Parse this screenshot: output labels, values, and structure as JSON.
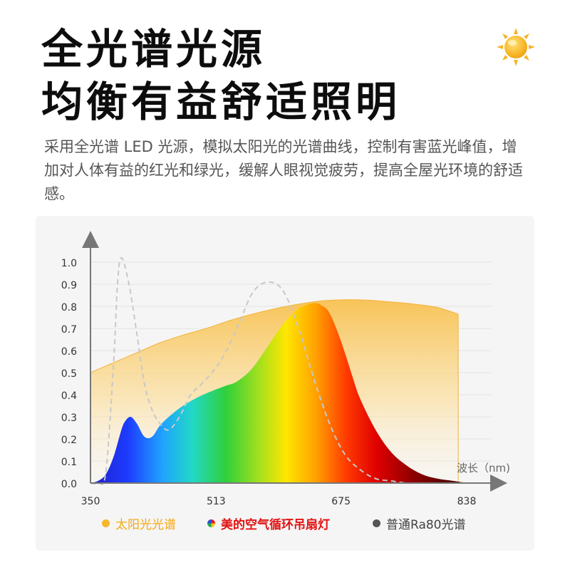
{
  "header": {
    "title_line1": "全光谱光源",
    "title_line2": "均衡有益舒适照明",
    "description": "采用全光谱 LED 光源，模拟太阳光的光谱曲线，控制有害蓝光峰值，增加对人体有益的红光和绿光，缓解人眼视觉疲劳，提高全屋光环境的舒适感。",
    "icon": "sun-icon"
  },
  "legend": {
    "sun": "太阳光光谱",
    "midea": "美的空气循环吊扇灯",
    "ra80": "普通Ra80光谱"
  },
  "chart_data": {
    "type": "area",
    "xlabel": "波长（nm)",
    "ylabel": "",
    "xlim": [
      350,
      838
    ],
    "ylim": [
      0,
      1.0
    ],
    "x_ticks": [
      350,
      513,
      675,
      838
    ],
    "y_ticks": [
      0.0,
      0.1,
      0.2,
      0.3,
      0.4,
      0.5,
      0.6,
      0.7,
      0.8,
      0.9,
      1.0
    ],
    "y_tick_labels": [
      "0.0",
      "0.1",
      "0.2",
      "0.3",
      "0.4",
      "0.5",
      "0.6",
      "0.7",
      "0.8",
      "0.9",
      "1.0"
    ],
    "grid": true,
    "colors": {
      "sun": "#f6b93b",
      "ra80": "#c8c8c8",
      "axis": "#777777"
    },
    "series": [
      {
        "name": "太阳光光谱",
        "style": "area",
        "x": [
          350,
          380,
          410,
          440,
          470,
          500,
          530,
          560,
          590,
          620,
          650,
          680,
          710,
          740,
          770,
          800,
          827
        ],
        "y": [
          0.5,
          0.545,
          0.59,
          0.635,
          0.67,
          0.7,
          0.735,
          0.765,
          0.79,
          0.81,
          0.825,
          0.83,
          0.828,
          0.82,
          0.81,
          0.795,
          0.765
        ]
      },
      {
        "name": "美的空气循环吊扇灯",
        "style": "spectrum-area",
        "x": [
          350,
          360,
          370,
          380,
          390,
          395,
          402,
          410,
          420,
          430,
          440,
          455,
          470,
          490,
          510,
          525,
          540,
          560,
          580,
          600,
          620,
          640,
          652,
          660,
          670,
          680,
          690,
          700,
          720,
          740,
          760,
          780,
          800,
          820,
          838
        ],
        "y": [
          0.0,
          0.01,
          0.04,
          0.12,
          0.24,
          0.28,
          0.3,
          0.27,
          0.21,
          0.21,
          0.26,
          0.31,
          0.35,
          0.39,
          0.42,
          0.44,
          0.46,
          0.52,
          0.62,
          0.72,
          0.79,
          0.815,
          0.8,
          0.77,
          0.69,
          0.59,
          0.48,
          0.38,
          0.24,
          0.14,
          0.08,
          0.04,
          0.02,
          0.01,
          0.0
        ]
      },
      {
        "name": "普通Ra80光谱",
        "style": "dashed-line",
        "x": [
          350,
          360,
          370,
          380,
          385,
          390,
          400,
          410,
          420,
          430,
          440,
          450,
          460,
          470,
          480,
          500,
          520,
          540,
          560,
          580,
          600,
          620,
          640,
          660,
          680,
          700,
          720,
          740,
          760,
          780,
          800
        ],
        "y": [
          0.0,
          0.0,
          0.05,
          0.55,
          0.9,
          1.02,
          0.9,
          0.68,
          0.45,
          0.33,
          0.27,
          0.24,
          0.27,
          0.33,
          0.4,
          0.47,
          0.56,
          0.7,
          0.86,
          0.91,
          0.87,
          0.7,
          0.47,
          0.27,
          0.13,
          0.06,
          0.02,
          0.01,
          0.0,
          0.0,
          0.0
        ]
      }
    ]
  }
}
